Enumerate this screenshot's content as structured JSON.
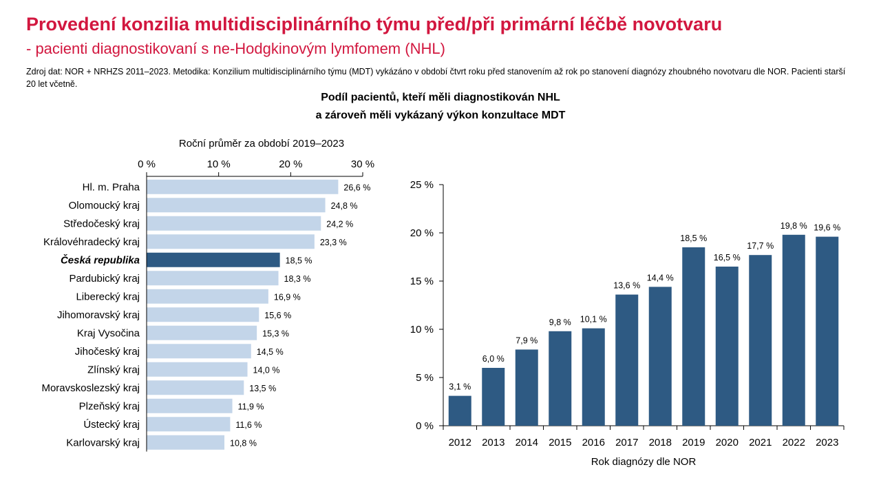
{
  "header": {
    "title": "Provedení konzilia multidisciplinárního týmu před/při primární léčbě novotvaru",
    "subtitle": "- pacienti diagnostikovaní s ne-Hodgkinovým lymfomem (NHL)",
    "source": "Zdroj dat: NOR + NRHZS 2011–2023. Metodika: Konzilium multidisciplinárního týmu (MDT) vykázáno v období čtvrt roku před stanovením až rok po stanovení diagnózy zhoubného novotvaru dle NOR. Pacienti starší 20 let včetně.",
    "chart_title_line1": "Podíl pacientů, kteří měli diagnostikován NHL",
    "chart_title_line2": "a zároveň měli vykázaný výkon konzultace MDT"
  },
  "colors": {
    "title": "#d2173f",
    "bar_light": "#c3d5e9",
    "bar_dark": "#2e5a83"
  },
  "chart_data": [
    {
      "type": "bar",
      "orientation": "horizontal",
      "title": "Roční průměr za období 2019–2023",
      "xlim": [
        0,
        30
      ],
      "xticks": [
        "0 %",
        "10 %",
        "20 %",
        "30 %"
      ],
      "xtick_values": [
        0,
        10,
        20,
        30
      ],
      "categories": [
        "Hl. m. Praha",
        "Olomoucký kraj",
        "Středočeský kraj",
        "Královéhradecký kraj",
        "Česká republika",
        "Pardubický kraj",
        "Liberecký kraj",
        "Jihomoravský kraj",
        "Kraj Vysočina",
        "Jihočeský kraj",
        "Zlínský kraj",
        "Moravskoslezský kraj",
        "Plzeňský kraj",
        "Ústecký kraj",
        "Karlovarský kraj"
      ],
      "values": [
        26.6,
        24.8,
        24.2,
        23.3,
        18.5,
        18.3,
        16.9,
        15.6,
        15.3,
        14.5,
        14.0,
        13.5,
        11.9,
        11.6,
        10.8
      ],
      "value_labels": [
        "26,6 %",
        "24,8 %",
        "24,2 %",
        "23,3 %",
        "18,5 %",
        "18,3 %",
        "16,9 %",
        "15,6 %",
        "15,3 %",
        "14,5 %",
        "14,0 %",
        "13,5 %",
        "11,9 %",
        "11,6 %",
        "10,8 %"
      ],
      "highlight": "Česká republika"
    },
    {
      "type": "bar",
      "orientation": "vertical",
      "xlabel": "Rok diagnózy dle NOR",
      "ylim": [
        0,
        25
      ],
      "yticks": [
        "0 %",
        "5 %",
        "10 %",
        "15 %",
        "20 %",
        "25 %"
      ],
      "ytick_values": [
        0,
        5,
        10,
        15,
        20,
        25
      ],
      "categories": [
        "2012",
        "2013",
        "2014",
        "2015",
        "2016",
        "2017",
        "2018",
        "2019",
        "2020",
        "2021",
        "2022",
        "2023"
      ],
      "values": [
        3.1,
        6.0,
        7.9,
        9.8,
        10.1,
        13.6,
        14.4,
        18.5,
        16.5,
        17.7,
        19.8,
        19.6
      ],
      "value_labels": [
        "3,1 %",
        "6,0 %",
        "7,9 %",
        "9,8 %",
        "10,1 %",
        "13,6 %",
        "14,4 %",
        "18,5 %",
        "16,5 %",
        "17,7 %",
        "19,8 %",
        "19,6 %"
      ]
    }
  ]
}
